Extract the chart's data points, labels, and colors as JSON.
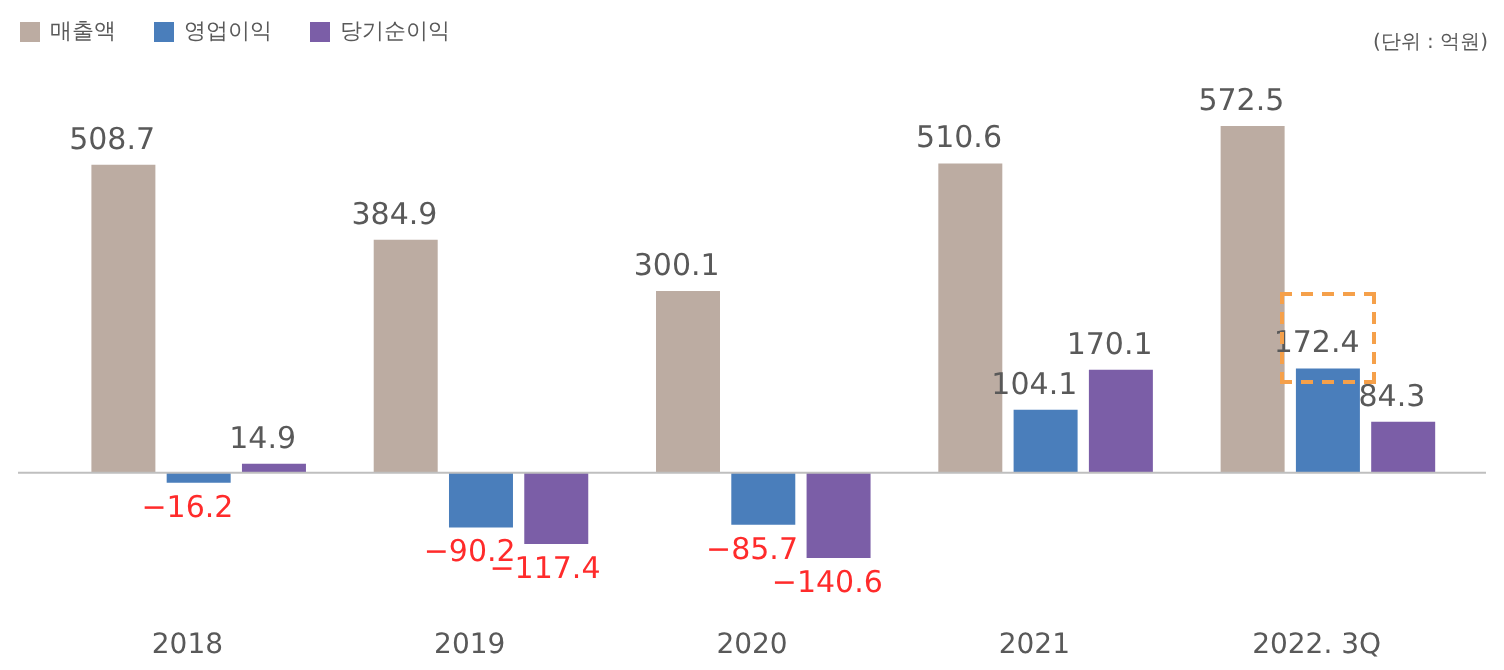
{
  "chart_data": {
    "type": "bar",
    "categories": [
      "2018",
      "2019",
      "2020",
      "2021",
      "2022. 3Q"
    ],
    "series": [
      {
        "name": "매출액",
        "color": "#bcaca2",
        "values": [
          508.7,
          384.9,
          300.1,
          510.6,
          572.5
        ]
      },
      {
        "name": "영업이익",
        "color": "#4a7ebb",
        "values": [
          -16.2,
          -90.2,
          -85.7,
          104.1,
          172.4
        ]
      },
      {
        "name": "당기순이익",
        "color": "#7b5ea7",
        "values": [
          14.9,
          -117.4,
          -140.6,
          170.1,
          84.3
        ]
      }
    ],
    "tick_labels": "x",
    "data_labels": true,
    "legend": "top",
    "annotations": [
      "(단위 : 억원)"
    ]
  }
}
